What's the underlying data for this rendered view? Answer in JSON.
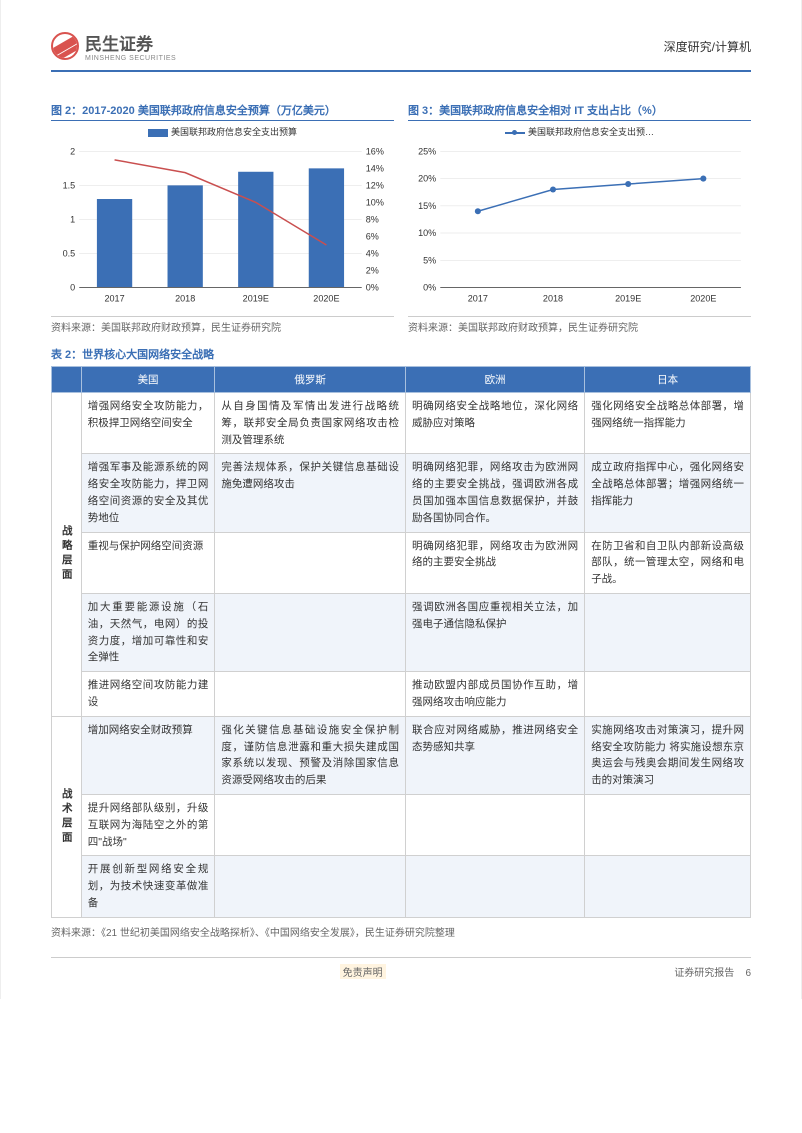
{
  "header": {
    "logo_cn": "民生证券",
    "logo_en": "MINSHENG SECURITIES",
    "right": "深度研究/计算机"
  },
  "chart1": {
    "title": "图 2：2017-2020 美国联邦政府信息安全预算（万亿美元）",
    "legend": "美国联邦政府信息安全支出预算",
    "type": "bar+line",
    "categories": [
      "2017",
      "2018",
      "2019E",
      "2020E"
    ],
    "bar_values": [
      1.3,
      1.5,
      1.7,
      1.75
    ],
    "line_values": [
      15,
      13.5,
      10,
      5
    ],
    "y1_ticks": [
      "0",
      "0.5",
      "1",
      "1.5",
      "2"
    ],
    "y1_max": 2,
    "y2_ticks": [
      "0%",
      "2%",
      "4%",
      "6%",
      "8%",
      "10%",
      "12%",
      "14%",
      "16%"
    ],
    "y2_max": 16,
    "bar_color": "#3b6fb5",
    "line_color": "#c94f4f",
    "source": "资料来源：美国联邦政府财政预算，民生证券研究院"
  },
  "chart2": {
    "title": "图 3：美国联邦政府信息安全相对 IT 支出占比（%）",
    "legend": "美国联邦政府信息安全支出预…",
    "type": "line",
    "categories": [
      "2017",
      "2018",
      "2019E",
      "2020E"
    ],
    "values": [
      14,
      18,
      19,
      20
    ],
    "y_ticks": [
      "0%",
      "5%",
      "10%",
      "15%",
      "20%",
      "25%"
    ],
    "y_max": 25,
    "line_color": "#3b6fb5",
    "source": "资料来源：美国联邦政府财政预算，民生证券研究院"
  },
  "table": {
    "title": "表 2：世界核心大国网络安全战略",
    "headers": [
      "",
      "美国",
      "俄罗斯",
      "欧洲",
      "日本"
    ],
    "groups": [
      {
        "label": "战略层面",
        "rows": [
          [
            "增强网络安全攻防能力，积极捍卫网络空间安全",
            "从自身国情及军情出发进行战略统筹，联邦安全局负责国家网络攻击检测及管理系统",
            "明确网络安全战略地位，深化网络威胁应对策略",
            "强化网络安全战略总体部署，增强网络统一指挥能力"
          ],
          [
            "增强军事及能源系统的网络安全攻防能力，捍卫网络空间资源的安全及其优势地位",
            "完善法规体系，保护关键信息基础设施免遭网络攻击",
            "明确网络犯罪，网络攻击为欧洲网络的主要安全挑战，强调欧洲各成员国加强本国信息数据保护，并鼓励各国协同合作。",
            "成立政府指挥中心，强化网络安全战略总体部署；增强网络统一指挥能力"
          ],
          [
            "重视与保护网络空间资源",
            "",
            "明确网络犯罪，网络攻击为欧洲网络的主要安全挑战",
            "在防卫省和自卫队内部新设高级部队，统一管理太空，网络和电子战。"
          ],
          [
            "加大重要能源设施（石油，天然气，电网）的投资力度，增加可靠性和安全弹性",
            "",
            "强调欧洲各国应重视相关立法，加强电子通信隐私保护",
            ""
          ],
          [
            "推进网络空间攻防能力建设",
            "",
            "推动欧盟内部成员国协作互助，增强网络攻击响应能力",
            ""
          ]
        ]
      },
      {
        "label": "战术层面",
        "rows": [
          [
            "增加网络安全财政预算",
            "强化关键信息基础设施安全保护制度，谨防信息泄露和重大损失建成国家系统以发现、预警及消除国家信息资源受网络攻击的后果",
            "联合应对网络威胁，推进网络安全态势感知共享",
            "实施网络攻击对策演习，提升网络安全攻防能力  将实施设想东京奥运会与残奥会期间发生网络攻击的对策演习"
          ],
          [
            "提升网络部队级别，升级互联网为海陆空之外的第四\"战场\"",
            "",
            "",
            ""
          ],
          [
            "开展创新型网络安全规划，为技术快速变革做准备",
            "",
            "",
            ""
          ]
        ]
      }
    ],
    "source": "资料来源：《21 世纪初美国网络安全战略探析》、《中国网络安全发展》，民生证券研究院整理"
  },
  "footer": {
    "center": "免责声明",
    "right": "证券研究报告",
    "page": "6"
  }
}
